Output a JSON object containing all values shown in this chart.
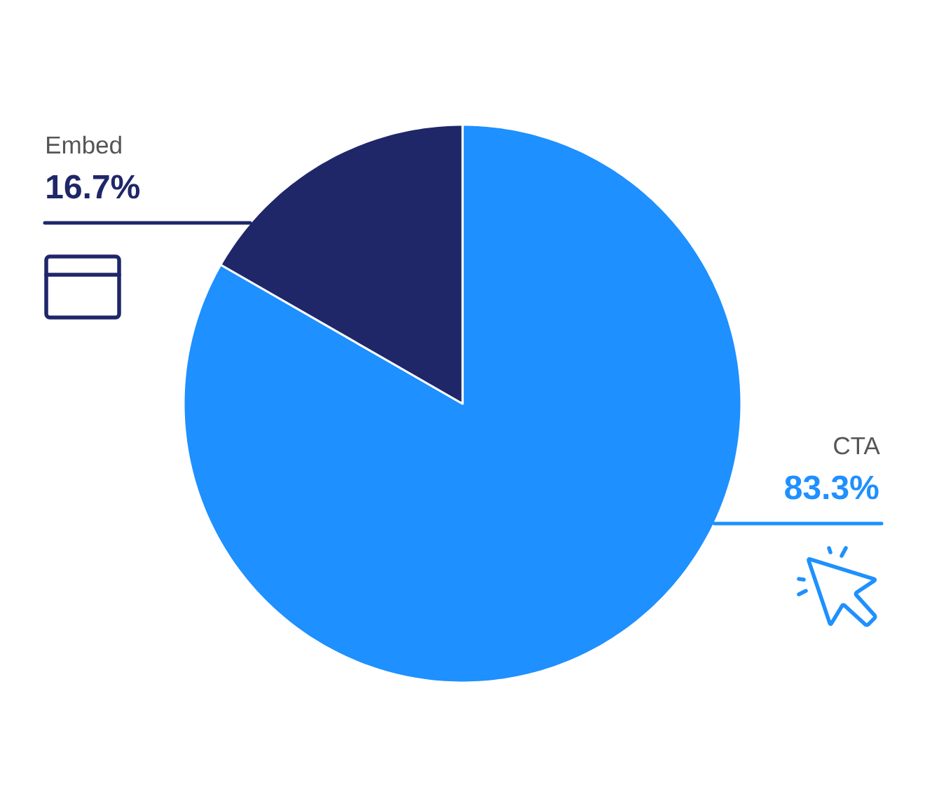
{
  "chart_data": {
    "type": "pie",
    "categories": [
      "CTA",
      "Embed"
    ],
    "values": [
      83.3,
      16.7
    ],
    "colors": [
      "#1e90ff",
      "#1f2769"
    ],
    "value_labels": [
      "83.3%",
      "16.7%"
    ]
  }
}
